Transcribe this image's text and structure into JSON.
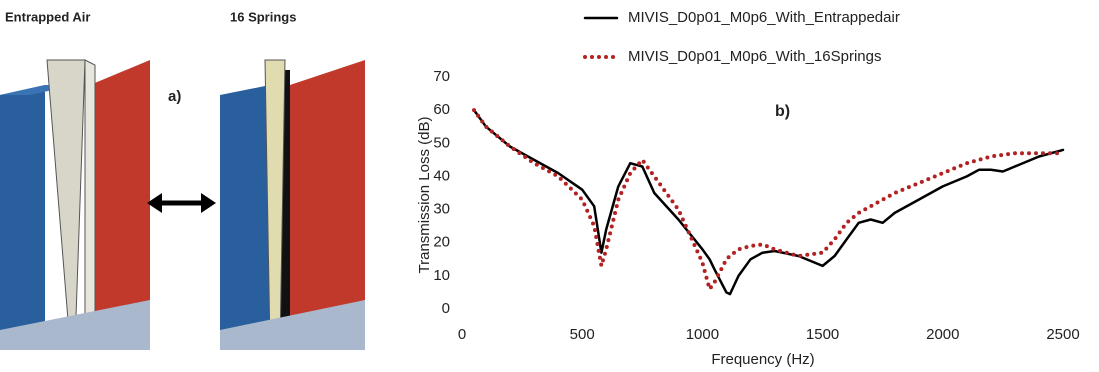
{
  "figure": {
    "left_title": "Entrapped Air",
    "right_title": "16 Springs",
    "panel_label": "a)"
  },
  "chart_data": {
    "type": "line",
    "annotation": "b)",
    "x_label": "Frequency (Hz)",
    "y_label": "Transmission Loss (dB)",
    "xlim": [
      0,
      2500
    ],
    "xticks": [
      0,
      500,
      1000,
      1500,
      2000,
      2500
    ],
    "ylim": [
      0,
      70
    ],
    "yticks": [
      0,
      10,
      20,
      30,
      40,
      50,
      60,
      70
    ],
    "grid": "none",
    "legend": "top",
    "x": [
      50,
      100,
      200,
      300,
      400,
      500,
      550,
      580,
      600,
      650,
      700,
      750,
      800,
      900,
      1000,
      1030,
      1050,
      1100,
      1115,
      1150,
      1200,
      1250,
      1300,
      1400,
      1500,
      1550,
      1600,
      1650,
      1700,
      1750,
      1800,
      1900,
      2000,
      2100,
      2150,
      2200,
      2250,
      2300,
      2400,
      2500
    ],
    "series": [
      {
        "name": "MIVIS_D0p01_M0p6_With_Entrappedair",
        "color": "#000000",
        "style": "solid",
        "values": [
          60,
          55,
          49,
          45,
          41,
          36,
          31,
          17,
          24,
          37,
          44,
          43,
          35,
          27,
          18,
          15,
          12,
          5,
          4.5,
          10,
          15,
          17,
          17.5,
          16,
          13,
          16,
          21,
          26,
          27,
          26,
          29,
          33,
          37,
          40,
          42,
          42,
          41.5,
          43,
          46,
          48
        ]
      },
      {
        "name": "MIVIS_D0p01_M0p6_With_16Springs",
        "color": "#b22222",
        "style": "dotted",
        "values": [
          60,
          55,
          49,
          44,
          40,
          33,
          25,
          13,
          18,
          33,
          41,
          45,
          40,
          30,
          14,
          6,
          8,
          15,
          16,
          18,
          19,
          19.5,
          18,
          16,
          17,
          21,
          26,
          29,
          31,
          33,
          35,
          38,
          41,
          44,
          45,
          46,
          46.5,
          47,
          47,
          47
        ]
      }
    ]
  }
}
